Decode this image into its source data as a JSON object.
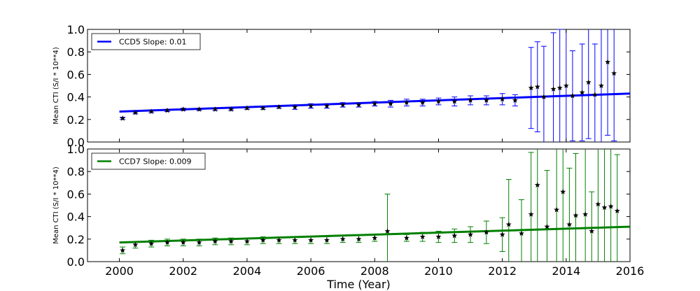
{
  "chart_data": [
    {
      "type": "scatter",
      "ylabel": "Mean CTI (S/I * 10**4)",
      "xlim": [
        1999,
        2016
      ],
      "ylim": [
        0.0,
        1.0
      ],
      "yticks": [
        "0.0",
        "0.2",
        "0.4",
        "0.6",
        "0.8",
        "1.0"
      ],
      "legend_position": "top-left",
      "fit_line": {
        "x": [
          2000.0,
          2016.0
        ],
        "y": [
          0.27,
          0.43
        ]
      },
      "series": [
        {
          "name": "CCD5 Slope: 0.01",
          "color": "#0000ff",
          "marker": "star",
          "x": [
            2000.1,
            2000.5,
            2001.0,
            2001.5,
            2002.0,
            2002.5,
            2003.0,
            2003.5,
            2004.0,
            2004.5,
            2005.0,
            2005.5,
            2006.0,
            2006.5,
            2007.0,
            2007.5,
            2008.0,
            2008.5,
            2009.0,
            2009.5,
            2010.0,
            2010.5,
            2011.0,
            2011.5,
            2012.0,
            2012.4,
            2012.9,
            2013.1,
            2013.3,
            2013.6,
            2013.8,
            2014.0,
            2014.2,
            2014.5,
            2014.7,
            2014.9,
            2015.1,
            2015.3,
            2015.5
          ],
          "y": [
            0.21,
            0.26,
            0.27,
            0.28,
            0.29,
            0.29,
            0.29,
            0.29,
            0.3,
            0.3,
            0.31,
            0.31,
            0.32,
            0.32,
            0.33,
            0.33,
            0.34,
            0.34,
            0.35,
            0.35,
            0.36,
            0.36,
            0.37,
            0.37,
            0.38,
            0.37,
            0.48,
            0.49,
            0.4,
            0.47,
            0.48,
            0.5,
            0.41,
            0.44,
            0.53,
            0.42,
            0.5,
            0.71,
            0.61
          ],
          "err": [
            0.01,
            0.01,
            0.01,
            0.01,
            0.01,
            0.01,
            0.01,
            0.01,
            0.01,
            0.01,
            0.01,
            0.02,
            0.02,
            0.02,
            0.02,
            0.02,
            0.02,
            0.03,
            0.03,
            0.03,
            0.03,
            0.04,
            0.04,
            0.04,
            0.05,
            0.05,
            0.36,
            0.4,
            0.45,
            0.5,
            0.52,
            0.55,
            0.4,
            0.43,
            0.5,
            0.45,
            0.6,
            0.65,
            0.6
          ]
        }
      ]
    },
    {
      "type": "scatter",
      "xlabel": "Time (Year)",
      "ylabel": "Mean CTI (S/I * 10**4)",
      "xlim": [
        1999,
        2016
      ],
      "ylim": [
        0.0,
        1.0
      ],
      "yticks": [
        "0.0",
        "0.2",
        "0.4",
        "0.6",
        "0.8",
        "1.0"
      ],
      "xticks": [
        "2000",
        "2002",
        "2004",
        "2006",
        "2008",
        "2010",
        "2012",
        "2014",
        "2016"
      ],
      "legend_position": "top-left",
      "fit_line": {
        "x": [
          2000.0,
          2016.0
        ],
        "y": [
          0.17,
          0.31
        ]
      },
      "series": [
        {
          "name": "CCD7 Slope: 0.009",
          "color": "#008000",
          "marker": "star",
          "x": [
            2000.1,
            2000.5,
            2001.0,
            2001.5,
            2002.0,
            2002.5,
            2003.0,
            2003.5,
            2004.0,
            2004.5,
            2005.0,
            2005.5,
            2006.0,
            2006.5,
            2007.0,
            2007.5,
            2008.0,
            2008.4,
            2009.0,
            2009.5,
            2010.0,
            2010.5,
            2011.0,
            2011.5,
            2012.0,
            2012.2,
            2012.6,
            2012.9,
            2013.1,
            2013.4,
            2013.7,
            2013.9,
            2014.1,
            2014.3,
            2014.6,
            2014.8,
            2015.0,
            2015.2,
            2015.4,
            2015.6
          ],
          "y": [
            0.1,
            0.15,
            0.16,
            0.17,
            0.17,
            0.17,
            0.18,
            0.18,
            0.18,
            0.19,
            0.19,
            0.19,
            0.19,
            0.19,
            0.2,
            0.2,
            0.21,
            0.27,
            0.21,
            0.22,
            0.22,
            0.23,
            0.24,
            0.26,
            0.24,
            0.33,
            0.25,
            0.42,
            0.68,
            0.31,
            0.46,
            0.62,
            0.33,
            0.41,
            0.42,
            0.27,
            0.51,
            0.48,
            0.49,
            0.45
          ],
          "err": [
            0.03,
            0.03,
            0.03,
            0.03,
            0.03,
            0.03,
            0.03,
            0.03,
            0.03,
            0.03,
            0.03,
            0.03,
            0.03,
            0.03,
            0.03,
            0.03,
            0.03,
            0.33,
            0.03,
            0.04,
            0.05,
            0.06,
            0.07,
            0.1,
            0.15,
            0.4,
            0.3,
            0.55,
            0.7,
            0.5,
            0.55,
            0.65,
            0.5,
            0.55,
            0.6,
            0.35,
            0.6,
            0.65,
            0.6,
            0.5
          ]
        }
      ]
    }
  ]
}
